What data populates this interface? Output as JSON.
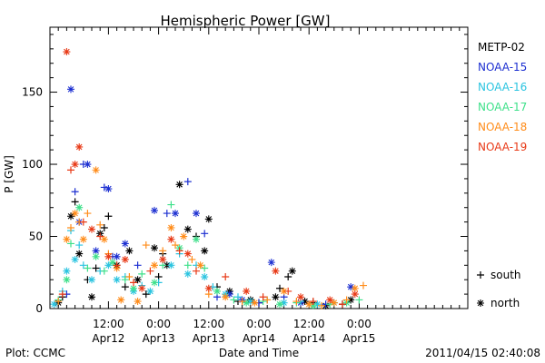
{
  "chart_data": {
    "type": "scatter",
    "title": "Hemispheric Power [GW]",
    "xlabel": "Date and Time",
    "ylabel": "P [GW]",
    "xlim_hours": [
      0,
      100
    ],
    "ylim": [
      0,
      195
    ],
    "yticks": [
      0,
      50,
      100,
      150
    ],
    "xticks": [
      {
        "h": 14,
        "time": "12:00",
        "date": "Apr12"
      },
      {
        "h": 26,
        "time": "0:00",
        "date": "Apr13"
      },
      {
        "h": 38,
        "time": "12:00",
        "date": "Apr13"
      },
      {
        "h": 50,
        "time": "0:00",
        "date": "Apr14"
      },
      {
        "h": 62,
        "time": "12:00",
        "date": "Apr14"
      },
      {
        "h": 74,
        "time": "0:00",
        "date": "Apr15"
      }
    ],
    "marker_legend": [
      {
        "marker": "+",
        "label": "south"
      },
      {
        "marker": "*",
        "label": "north"
      }
    ],
    "series": [
      {
        "name": "METP-02",
        "color": "#000000",
        "points": [
          [
            2,
            4,
            "*"
          ],
          [
            3,
            8,
            "+"
          ],
          [
            5,
            64,
            "*"
          ],
          [
            6,
            74,
            "+"
          ],
          [
            7,
            38,
            "*"
          ],
          [
            9,
            20,
            "+"
          ],
          [
            10,
            8,
            "*"
          ],
          [
            11,
            28,
            "+"
          ],
          [
            12,
            52,
            "*"
          ],
          [
            13,
            56,
            "+"
          ],
          [
            14,
            64,
            "+"
          ],
          [
            16,
            30,
            "*"
          ],
          [
            18,
            15,
            "+"
          ],
          [
            19,
            40,
            "*"
          ],
          [
            21,
            20,
            "*"
          ],
          [
            23,
            10,
            "+"
          ],
          [
            25,
            42,
            "*"
          ],
          [
            26,
            22,
            "+"
          ],
          [
            27,
            38,
            "+"
          ],
          [
            28,
            30,
            "*"
          ],
          [
            31,
            86,
            "*"
          ],
          [
            33,
            55,
            "*"
          ],
          [
            35,
            50,
            "+"
          ],
          [
            37,
            40,
            "*"
          ],
          [
            38,
            62,
            "*"
          ],
          [
            40,
            15,
            "+"
          ],
          [
            43,
            12,
            "*"
          ],
          [
            45,
            5,
            "+"
          ],
          [
            48,
            6,
            "*"
          ],
          [
            50,
            4,
            "+"
          ],
          [
            54,
            8,
            "*"
          ],
          [
            55,
            14,
            "+"
          ],
          [
            57,
            22,
            "+"
          ],
          [
            58,
            26,
            "*"
          ],
          [
            61,
            5,
            "*"
          ],
          [
            63,
            4,
            "+"
          ],
          [
            66,
            2,
            "*"
          ],
          [
            70,
            3,
            "+"
          ],
          [
            72,
            6,
            "*"
          ]
        ]
      },
      {
        "name": "NOAA-15",
        "color": "#1c2fd1",
        "points": [
          [
            4,
            10,
            "+"
          ],
          [
            5,
            152,
            "*"
          ],
          [
            6,
            81,
            "+"
          ],
          [
            7,
            60,
            "*"
          ],
          [
            8,
            100,
            "+"
          ],
          [
            9,
            100,
            "*"
          ],
          [
            11,
            40,
            "*"
          ],
          [
            13,
            84,
            "+"
          ],
          [
            14,
            83,
            "*"
          ],
          [
            15,
            36,
            "+"
          ],
          [
            16,
            36,
            "*"
          ],
          [
            18,
            45,
            "*"
          ],
          [
            21,
            30,
            "+"
          ],
          [
            25,
            68,
            "*"
          ],
          [
            28,
            66,
            "+"
          ],
          [
            30,
            66,
            "*"
          ],
          [
            33,
            88,
            "+"
          ],
          [
            35,
            66,
            "*"
          ],
          [
            37,
            52,
            "+"
          ],
          [
            40,
            8,
            "+"
          ],
          [
            43,
            10,
            "*"
          ],
          [
            46,
            6,
            "*"
          ],
          [
            50,
            4,
            "+"
          ],
          [
            53,
            32,
            "*"
          ],
          [
            56,
            8,
            "+"
          ],
          [
            60,
            4,
            "*"
          ],
          [
            66,
            3,
            "+"
          ],
          [
            72,
            15,
            "*"
          ]
        ]
      },
      {
        "name": "NOAA-16",
        "color": "#2bc4e0",
        "points": [
          [
            1,
            3,
            "*"
          ],
          [
            3,
            12,
            "+"
          ],
          [
            4,
            26,
            "*"
          ],
          [
            5,
            54,
            "+"
          ],
          [
            6,
            34,
            "*"
          ],
          [
            7,
            44,
            "+"
          ],
          [
            8,
            30,
            "+"
          ],
          [
            10,
            20,
            "*"
          ],
          [
            12,
            26,
            "+"
          ],
          [
            14,
            30,
            "*"
          ],
          [
            16,
            20,
            "*"
          ],
          [
            18,
            22,
            "+"
          ],
          [
            20,
            12,
            "*"
          ],
          [
            22,
            16,
            "+"
          ],
          [
            24,
            12,
            "*"
          ],
          [
            26,
            18,
            "+"
          ],
          [
            29,
            30,
            "*"
          ],
          [
            31,
            38,
            "+"
          ],
          [
            33,
            24,
            "*"
          ],
          [
            35,
            30,
            "+"
          ],
          [
            37,
            22,
            "*"
          ],
          [
            39,
            15,
            "+"
          ],
          [
            42,
            10,
            "*"
          ],
          [
            45,
            8,
            "+"
          ],
          [
            48,
            5,
            "*"
          ],
          [
            52,
            6,
            "+"
          ],
          [
            56,
            4,
            "*"
          ],
          [
            60,
            5,
            "+"
          ],
          [
            64,
            3,
            "*"
          ],
          [
            68,
            4,
            "+"
          ]
        ]
      },
      {
        "name": "NOAA-17",
        "color": "#3ee08a",
        "points": [
          [
            2,
            6,
            "+"
          ],
          [
            4,
            20,
            "*"
          ],
          [
            5,
            45,
            "+"
          ],
          [
            7,
            70,
            "*"
          ],
          [
            9,
            28,
            "+"
          ],
          [
            11,
            36,
            "*"
          ],
          [
            13,
            26,
            "+"
          ],
          [
            15,
            32,
            "*"
          ],
          [
            18,
            20,
            "+"
          ],
          [
            20,
            14,
            "*"
          ],
          [
            22,
            24,
            "+"
          ],
          [
            25,
            18,
            "*"
          ],
          [
            27,
            30,
            "+"
          ],
          [
            29,
            72,
            "+"
          ],
          [
            31,
            42,
            "*"
          ],
          [
            33,
            30,
            "+"
          ],
          [
            35,
            48,
            "*"
          ],
          [
            37,
            28,
            "+"
          ],
          [
            40,
            12,
            "*"
          ],
          [
            44,
            6,
            "+"
          ],
          [
            47,
            4,
            "*"
          ],
          [
            51,
            5,
            "+"
          ],
          [
            55,
            3,
            "*"
          ],
          [
            59,
            4,
            "+"
          ],
          [
            63,
            2,
            "*"
          ],
          [
            67,
            3,
            "+"
          ],
          [
            71,
            4,
            "*"
          ],
          [
            74,
            6,
            "+"
          ]
        ]
      },
      {
        "name": "NOAA-18",
        "color": "#ff8c1a",
        "points": [
          [
            2,
            5,
            "+"
          ],
          [
            4,
            48,
            "*"
          ],
          [
            5,
            56,
            "+"
          ],
          [
            6,
            66,
            "*"
          ],
          [
            7,
            60,
            "+"
          ],
          [
            8,
            48,
            "*"
          ],
          [
            9,
            66,
            "+"
          ],
          [
            11,
            96,
            "*"
          ],
          [
            12,
            58,
            "+"
          ],
          [
            13,
            48,
            "*"
          ],
          [
            14,
            38,
            "+"
          ],
          [
            16,
            28,
            "*"
          ],
          [
            17,
            6,
            "*"
          ],
          [
            19,
            22,
            "+"
          ],
          [
            21,
            5,
            "*"
          ],
          [
            23,
            44,
            "+"
          ],
          [
            25,
            30,
            "*"
          ],
          [
            27,
            40,
            "+"
          ],
          [
            29,
            56,
            "*"
          ],
          [
            30,
            44,
            "+"
          ],
          [
            32,
            50,
            "*"
          ],
          [
            34,
            34,
            "+"
          ],
          [
            36,
            30,
            "*"
          ],
          [
            38,
            10,
            "+"
          ],
          [
            42,
            8,
            "*"
          ],
          [
            46,
            5,
            "+"
          ],
          [
            49,
            4,
            "*"
          ],
          [
            52,
            6,
            "+"
          ],
          [
            56,
            12,
            "*"
          ],
          [
            59,
            5,
            "+"
          ],
          [
            62,
            3,
            "*"
          ],
          [
            65,
            2,
            "+"
          ],
          [
            68,
            4,
            "*"
          ],
          [
            71,
            6,
            "+"
          ],
          [
            73,
            14,
            "*"
          ],
          [
            75,
            16,
            "+"
          ]
        ]
      },
      {
        "name": "NOAA-19",
        "color": "#e83a17",
        "points": [
          [
            3,
            10,
            "+"
          ],
          [
            4,
            178,
            "*"
          ],
          [
            5,
            96,
            "+"
          ],
          [
            6,
            100,
            "*"
          ],
          [
            7,
            112,
            "*"
          ],
          [
            8,
            60,
            "+"
          ],
          [
            10,
            55,
            "*"
          ],
          [
            12,
            50,
            "+"
          ],
          [
            14,
            36,
            "*"
          ],
          [
            16,
            30,
            "+"
          ],
          [
            18,
            34,
            "*"
          ],
          [
            20,
            18,
            "+"
          ],
          [
            22,
            14,
            "*"
          ],
          [
            24,
            26,
            "+"
          ],
          [
            27,
            34,
            "*"
          ],
          [
            29,
            48,
            "*"
          ],
          [
            31,
            40,
            "+"
          ],
          [
            33,
            38,
            "*"
          ],
          [
            35,
            26,
            "+"
          ],
          [
            38,
            14,
            "*"
          ],
          [
            42,
            22,
            "+"
          ],
          [
            47,
            12,
            "*"
          ],
          [
            51,
            8,
            "+"
          ],
          [
            54,
            26,
            "*"
          ],
          [
            57,
            12,
            "+"
          ],
          [
            60,
            8,
            "*"
          ],
          [
            63,
            5,
            "+"
          ],
          [
            67,
            6,
            "*"
          ],
          [
            70,
            3,
            "+"
          ],
          [
            73,
            10,
            "*"
          ]
        ]
      }
    ]
  },
  "footer": {
    "left": "Plot: CCMC",
    "center": "Date and Time",
    "right": "2011/04/15 02:40:08"
  }
}
